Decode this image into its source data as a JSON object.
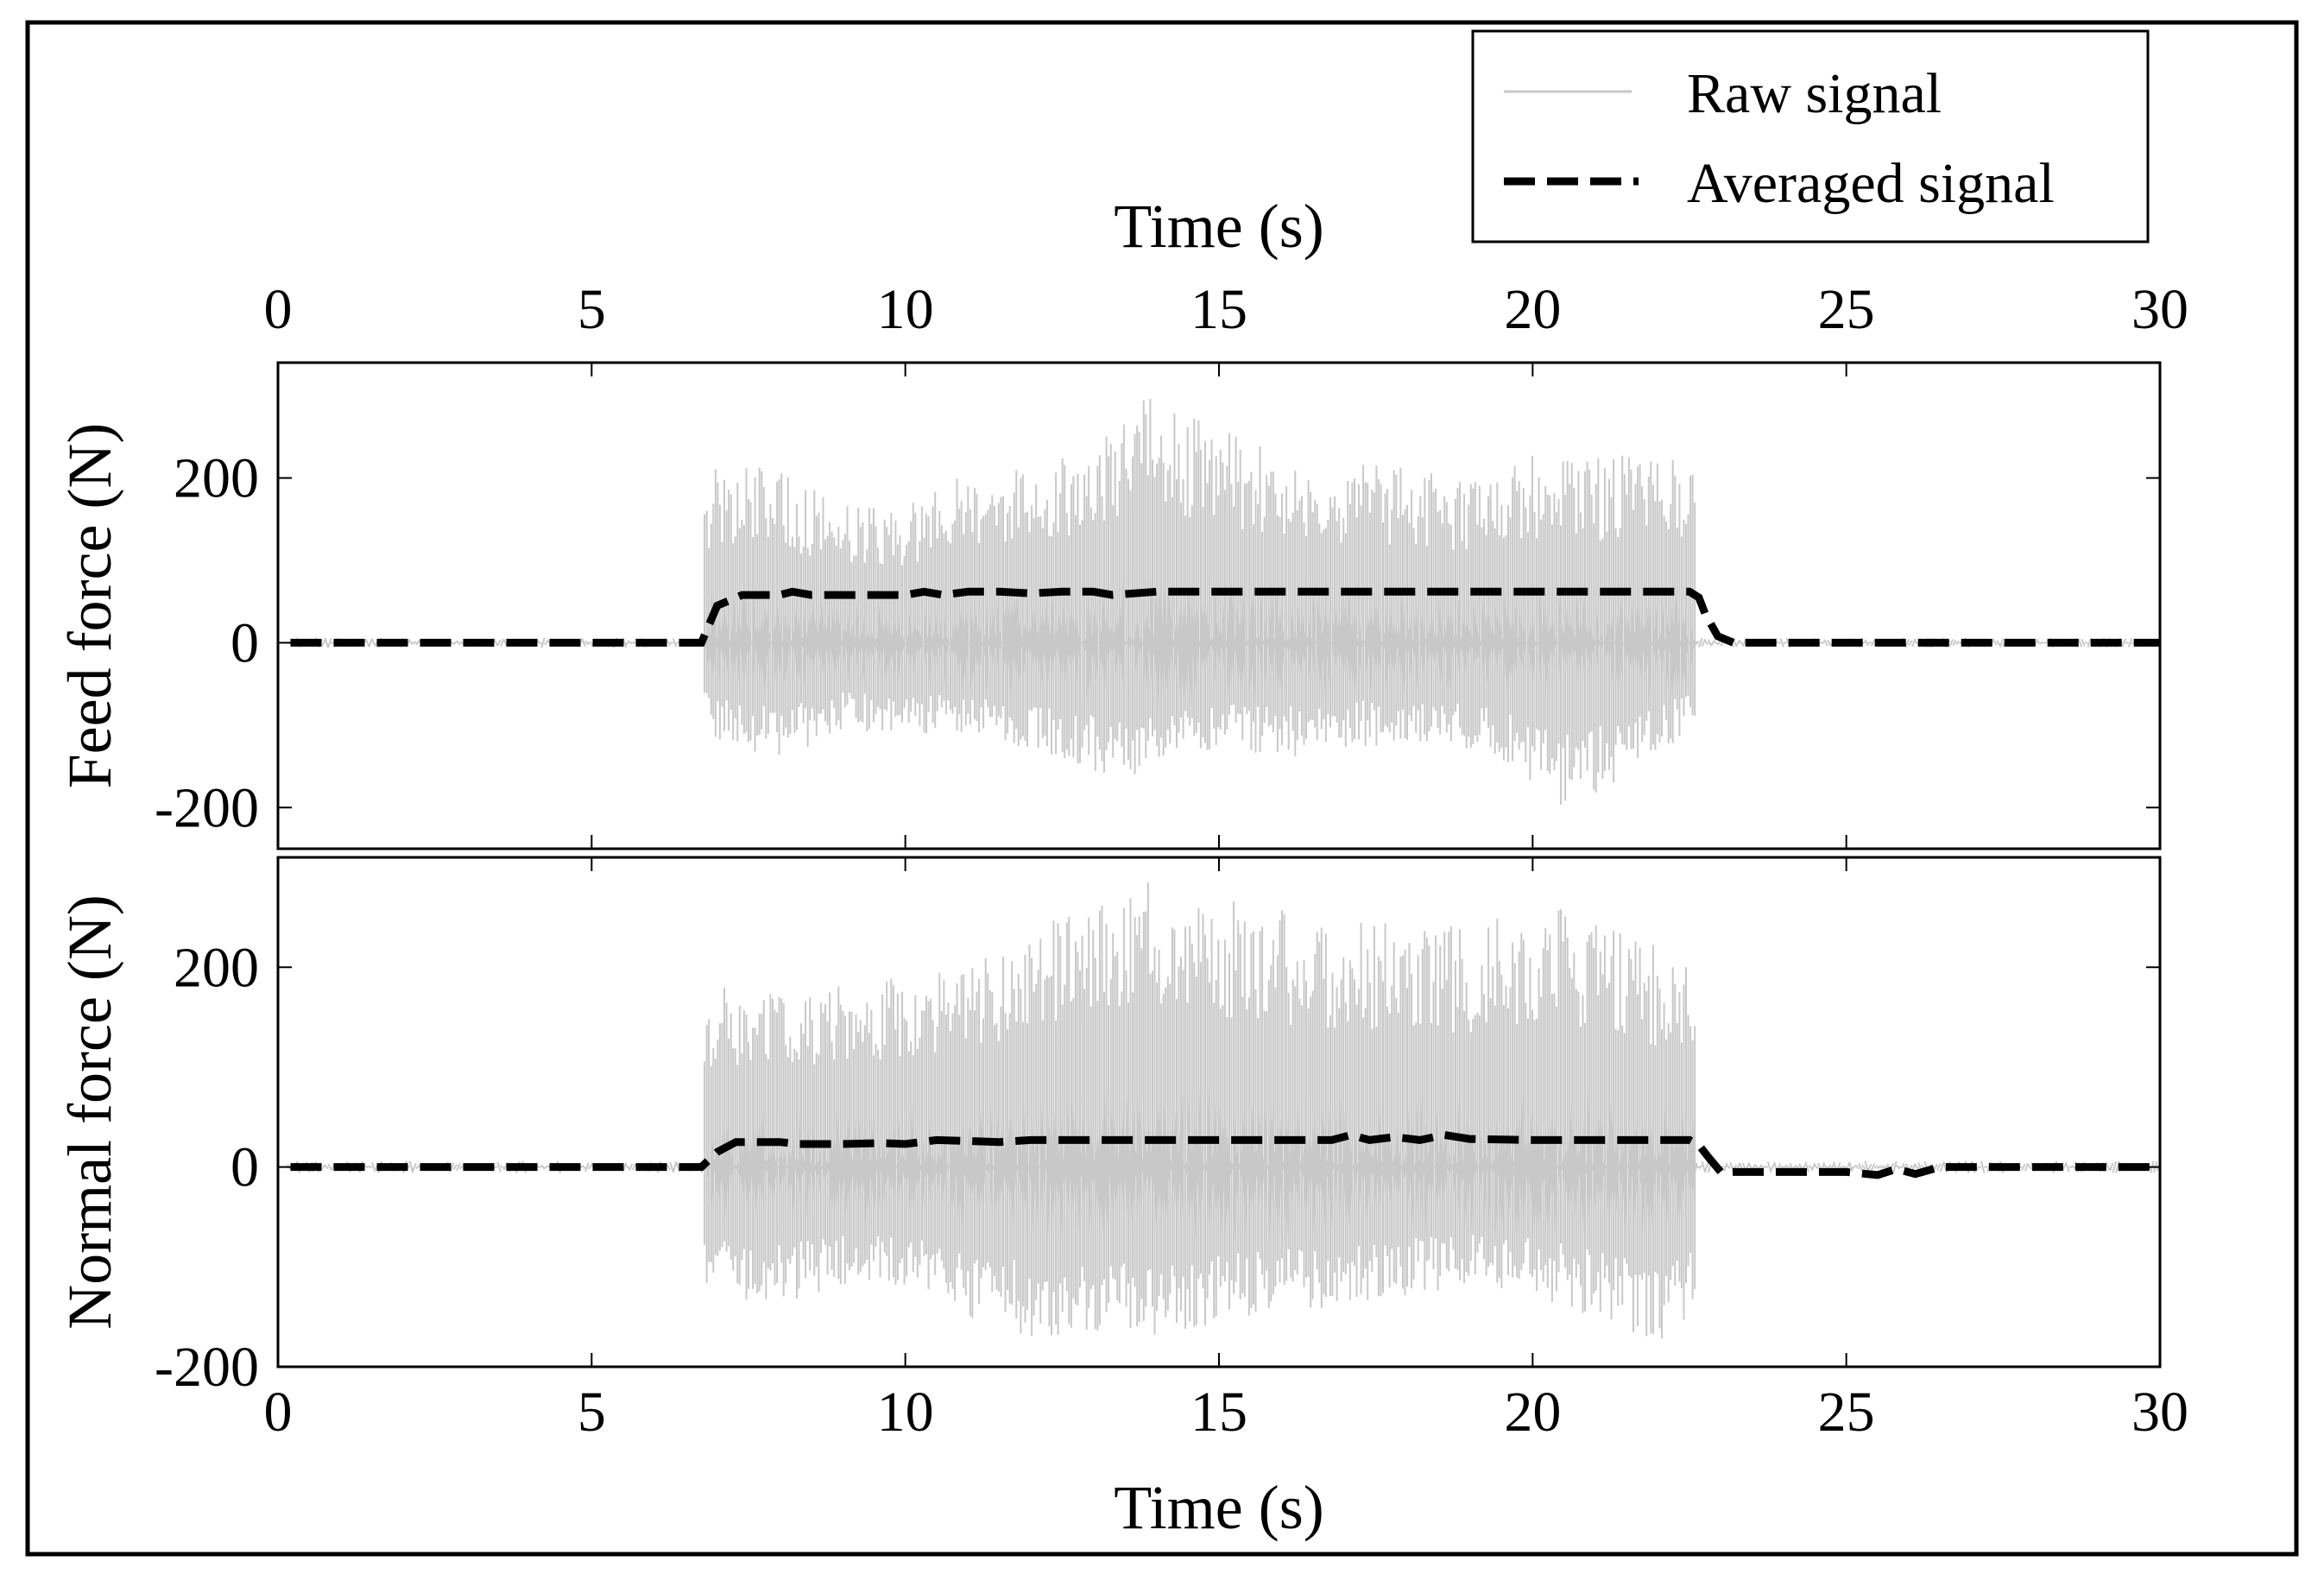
{
  "chart_data": [
    {
      "type": "line",
      "xlabel": "Time (s)",
      "ylabel": "Feed force (N)",
      "xlim": [
        0,
        30
      ],
      "ylim": [
        -250,
        340
      ],
      "xticks": [
        "0",
        "5",
        "10",
        "15",
        "20",
        "25",
        "30"
      ],
      "yticks": [
        "-200",
        "0",
        "200"
      ],
      "series": [
        {
          "name": "Raw signal",
          "color": "#c8c8c8",
          "cut_start": 6.8,
          "cut_end": 22.6,
          "envelope_x": [
            6.8,
            7.0,
            8.0,
            9.0,
            10.0,
            11.0,
            12.0,
            13.0,
            13.8,
            15.0,
            16.0,
            17.0,
            18.0,
            19.0,
            20.0,
            20.5,
            21.0,
            22.0,
            22.6
          ],
          "envelope_max": [
            200,
            220,
            210,
            170,
            170,
            210,
            220,
            240,
            300,
            260,
            230,
            220,
            215,
            200,
            230,
            230,
            225,
            230,
            230
          ],
          "envelope_min": [
            -100,
            -120,
            -140,
            -110,
            -110,
            -120,
            -130,
            -160,
            -160,
            -130,
            -140,
            -130,
            -120,
            -130,
            -170,
            -200,
            -185,
            -140,
            -100
          ]
        },
        {
          "name": "Averaged signal",
          "color": "#000000",
          "x": [
            0.2,
            6.6,
            6.75,
            7.0,
            7.4,
            8.0,
            8.2,
            8.5,
            9.0,
            9.6,
            10.0,
            10.3,
            10.6,
            11.0,
            11.5,
            12.0,
            12.5,
            13.0,
            13.3,
            14.0,
            15.0,
            16.0,
            17.0,
            18.0,
            19.0,
            20.0,
            21.0,
            22.0,
            22.5,
            22.65,
            22.75,
            22.95,
            23.2,
            25.0,
            27.0,
            30.0
          ],
          "y": [
            0,
            0,
            0,
            45,
            58,
            58,
            62,
            58,
            58,
            58,
            58,
            62,
            58,
            62,
            62,
            60,
            62,
            62,
            58,
            62,
            62,
            62,
            62,
            62,
            62,
            62,
            62,
            62,
            62,
            55,
            35,
            8,
            0,
            0,
            0,
            0
          ]
        }
      ]
    },
    {
      "type": "line",
      "xlabel": "Time (s)",
      "ylabel": "Normal force (N)",
      "xlim": [
        0,
        30
      ],
      "ylim": [
        -200,
        310
      ],
      "xticks": [
        "0",
        "5",
        "10",
        "15",
        "20",
        "25",
        "30"
      ],
      "yticks": [
        "-200",
        "0",
        "200"
      ],
      "series": [
        {
          "name": "Raw signal",
          "color": "#c8c8c8",
          "cut_start": 6.8,
          "cut_end": 22.6,
          "envelope_x": [
            6.8,
            7.0,
            8.0,
            9.0,
            10.0,
            11.0,
            12.0,
            13.0,
            14.0,
            15.0,
            16.0,
            17.0,
            18.0,
            19.0,
            20.0,
            21.0,
            22.0,
            22.6
          ],
          "envelope_max": [
            170,
            185,
            175,
            185,
            195,
            215,
            240,
            260,
            290,
            270,
            260,
            250,
            245,
            240,
            265,
            250,
            220,
            200
          ],
          "envelope_min": [
            -120,
            -130,
            -140,
            -120,
            -120,
            -150,
            -170,
            -170,
            -170,
            -160,
            -150,
            -140,
            -130,
            -120,
            -130,
            -150,
            -180,
            -150
          ]
        },
        {
          "name": "Averaged signal",
          "color": "#000000",
          "x": [
            0.2,
            6.6,
            6.75,
            7.0,
            7.3,
            8.0,
            8.3,
            9.0,
            9.6,
            10.0,
            10.5,
            11.0,
            11.5,
            12.0,
            13.0,
            14.0,
            15.0,
            16.0,
            16.8,
            17.1,
            17.4,
            17.8,
            18.2,
            18.6,
            19.0,
            20.0,
            21.0,
            22.0,
            22.5,
            22.65,
            22.8,
            23.0,
            23.4,
            24.0,
            25.0,
            25.5,
            25.8,
            26.1,
            26.5,
            27.0,
            30.0
          ],
          "y": [
            0,
            0,
            0,
            15,
            25,
            25,
            23,
            23,
            24,
            23,
            27,
            26,
            25,
            27,
            27,
            27,
            27,
            27,
            27,
            32,
            27,
            30,
            27,
            32,
            28,
            27,
            27,
            27,
            27,
            22,
            10,
            -5,
            -5,
            -5,
            -5,
            -8,
            -2,
            -7,
            0,
            0,
            0
          ]
        }
      ]
    }
  ]
}
